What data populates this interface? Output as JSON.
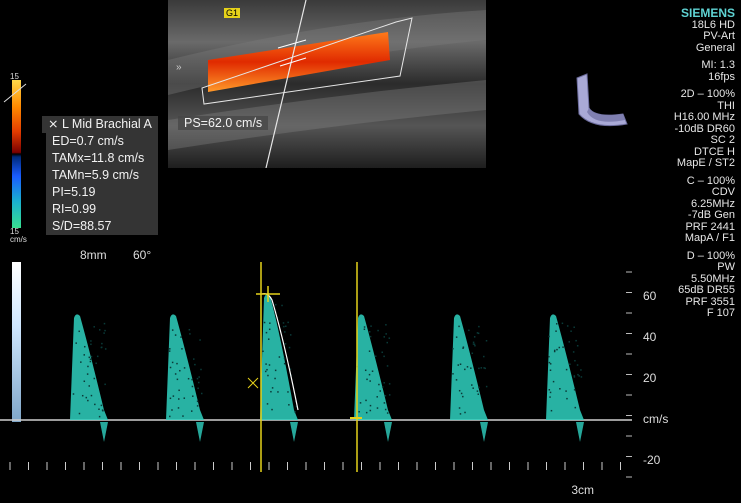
{
  "brand": "SIEMENS",
  "info_panel": [
    "18L6 HD",
    "PV-Art",
    "General",
    "",
    "MI: 1.3",
    "16fps",
    "",
    "2D – 100%",
    "THI",
    "H16.00 MHz",
    "-10dB DR60",
    "SC 2",
    "DTCE H",
    "MapE / ST2",
    "",
    "C – 100%",
    "CDV",
    "6.25MHz",
    "-7dB Gen",
    "PRF 2441",
    "MapA / F1",
    "",
    "D – 100%",
    "PW",
    "5.50MHz",
    "65dB DR55",
    "PRF 3551",
    "F 107"
  ],
  "measurements": {
    "title": "L Mid Brachial A",
    "ps": "PS=62.0 cm/s",
    "rows": [
      "ED=0.7 cm/s",
      "TAMx=11.8 cm/s",
      "TAMn=5.9 cm/s",
      "PI=5.19",
      "RI=0.99",
      "S/D=88.57"
    ]
  },
  "colorbar": {
    "top": "15",
    "bottom": "15",
    "unit": "cm/s"
  },
  "doppler": {
    "depth": "8mm",
    "angle": "60°",
    "velocity_ticks": [
      "60",
      "40",
      "20",
      "cm/s",
      "-20"
    ],
    "scale": "3cm",
    "bookmark": "G1"
  },
  "colors": {
    "spectrum": "#2fd1c0",
    "cursor": "#e6d21a",
    "baseline": "#cfcfcf",
    "brand": "#5fd3d3"
  }
}
